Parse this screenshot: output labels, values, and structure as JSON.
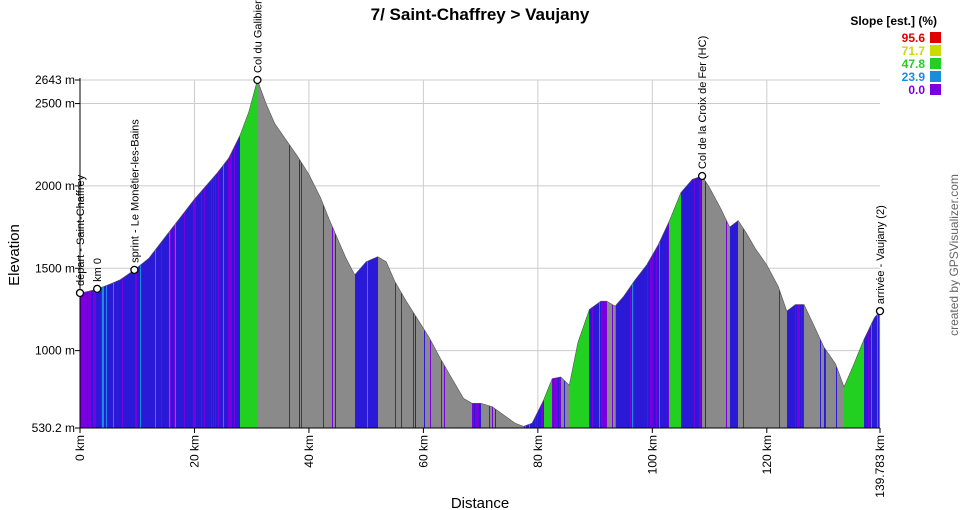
{
  "chart_data": {
    "type": "area",
    "title": "7/ Saint-Chaffrey > Vaujany",
    "xlabel": "Distance",
    "ylabel": "Elevation",
    "xlim": [
      0,
      139.783
    ],
    "ylim": [
      530.2,
      2643
    ],
    "x_ticks": [
      0,
      20,
      40,
      60,
      80,
      100,
      120,
      139.783
    ],
    "x_tick_labels": [
      "0 km",
      "20 km",
      "40 km",
      "60 km",
      "80 km",
      "100 km",
      "120 km",
      "139.783 km"
    ],
    "y_ticks": [
      530.2,
      1000,
      1500,
      2000,
      2500,
      2643
    ],
    "y_tick_labels": [
      "530.2 m",
      "1000 m",
      "1500 m",
      "2000 m",
      "2500 m",
      "2643 m"
    ],
    "grid": true,
    "profile": {
      "x": [
        0,
        1.5,
        3,
        5,
        7,
        9.5,
        12,
        14,
        16,
        18,
        20,
        22,
        24,
        26,
        28,
        29.5,
        31,
        32.5,
        34,
        36,
        38,
        40,
        42,
        43.5,
        45,
        46.5,
        48,
        50,
        52,
        53.5,
        55,
        57,
        59,
        61,
        63,
        65,
        67,
        68.5,
        70,
        72,
        74,
        76,
        77.5,
        79,
        81,
        82.5,
        84,
        85.5,
        87,
        89,
        91,
        92,
        93.5,
        95,
        97,
        99,
        101,
        103,
        105,
        107,
        108.7,
        110,
        112,
        113.5,
        115,
        116.5,
        118,
        120,
        122,
        123.5,
        125,
        126.5,
        128,
        130,
        132,
        133.5,
        135,
        137,
        138.8,
        139.783
      ],
      "y": [
        1350,
        1360,
        1375,
        1400,
        1430,
        1490,
        1560,
        1650,
        1740,
        1830,
        1920,
        2000,
        2080,
        2170,
        2310,
        2450,
        2643,
        2500,
        2380,
        2280,
        2180,
        2070,
        1930,
        1800,
        1680,
        1560,
        1460,
        1540,
        1570,
        1540,
        1420,
        1300,
        1190,
        1080,
        950,
        830,
        710,
        680,
        680,
        660,
        610,
        560,
        540,
        560,
        700,
        830,
        840,
        790,
        1050,
        1250,
        1300,
        1300,
        1270,
        1330,
        1430,
        1520,
        1640,
        1790,
        1960,
        2040,
        2060,
        1990,
        1860,
        1750,
        1790,
        1710,
        1620,
        1520,
        1390,
        1240,
        1280,
        1280,
        1170,
        1020,
        920,
        780,
        900,
        1070,
        1200,
        1240
      ]
    },
    "waypoints": [
      {
        "label": "départ - Saint-Chaffrey",
        "x": 0,
        "y": 1350
      },
      {
        "label": "km 0",
        "x": 3,
        "y": 1375
      },
      {
        "label": "sprint - Le Monêtier-les-Bains",
        "x": 9.5,
        "y": 1490
      },
      {
        "label": "Col du Galibier",
        "x": 31,
        "y": 2643
      },
      {
        "label": "Col de la Croix de Fer (HC)",
        "x": 108.7,
        "y": 2060
      },
      {
        "label": "arrivée - Vaujany (2)",
        "x": 139.783,
        "y": 1240
      }
    ],
    "legend": {
      "title": "Slope [est.] (%)",
      "placement": "top-right",
      "items": [
        {
          "label": "95.6",
          "color": "#e00000"
        },
        {
          "label": "71.7",
          "color": "#c8dc00"
        },
        {
          "label": "47.8",
          "color": "#22d022"
        },
        {
          "label": "23.9",
          "color": "#1a8cdc"
        },
        {
          "label": "0.0",
          "color": "#7a00e0"
        }
      ]
    },
    "colors": {
      "descent": "#8a8a8a",
      "climb_low": "#7a00e0",
      "climb_mid": "#2a1ad8",
      "climb_high": "#1a8cdc",
      "climb_steep": "#22d022",
      "grid": "#cccccc",
      "axis": "#000000"
    }
  },
  "credit": "created by GPSVisualizer.com"
}
